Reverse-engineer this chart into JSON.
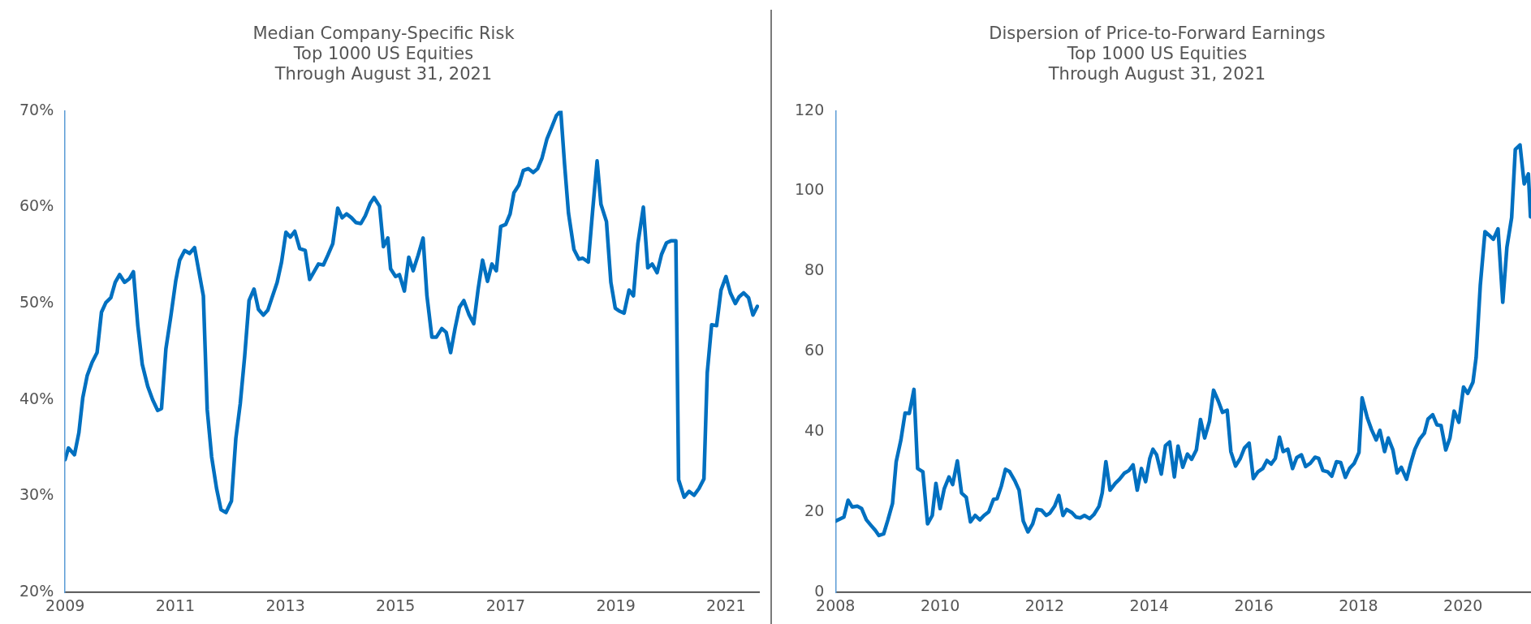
{
  "chart_data": [
    {
      "type": "line",
      "title": "Median Company-Specific Risk",
      "subtitle": "Top 1000 US Equities\nThrough August 31, 2021",
      "xlim": [
        2009,
        2021.6
      ],
      "xticks": [
        2009,
        2011,
        2013,
        2015,
        2017,
        2019,
        2021
      ],
      "ylim": [
        20,
        70
      ],
      "yticks": [
        {
          "value": 20,
          "label": "20%"
        },
        {
          "value": 30,
          "label": "30%"
        },
        {
          "value": 40,
          "label": "40%"
        },
        {
          "value": 50,
          "label": "50%"
        },
        {
          "value": 60,
          "label": "60%"
        },
        {
          "value": 70,
          "label": "70%"
        }
      ],
      "series": [
        {
          "color": "#0070c0",
          "x": [
            2009.0,
            2009.06,
            2009.17,
            2009.25,
            2009.32,
            2009.4,
            2009.49,
            2009.58,
            2009.66,
            2009.74,
            2009.83,
            2009.91,
            2009.99,
            2010.08,
            2010.17,
            2010.24,
            2010.32,
            2010.4,
            2010.5,
            2010.59,
            2010.68,
            2010.75,
            2010.83,
            2010.92,
            2011.01,
            2011.08,
            2011.17,
            2011.26,
            2011.35,
            2011.43,
            2011.51,
            2011.58,
            2011.66,
            2011.75,
            2011.83,
            2011.92,
            2012.02,
            2012.1,
            2012.18,
            2012.26,
            2012.34,
            2012.43,
            2012.51,
            2012.6,
            2012.68,
            2012.75,
            2012.85,
            2012.93,
            2013.01,
            2013.09,
            2013.17,
            2013.26,
            2013.36,
            2013.44,
            2013.52,
            2013.6,
            2013.69,
            2013.77,
            2013.86,
            2013.95,
            2014.03,
            2014.11,
            2014.2,
            2014.28,
            2014.37,
            2014.45,
            2014.54,
            2014.61,
            2014.71,
            2014.78,
            2014.86,
            2014.91,
            2015.0,
            2015.07,
            2015.16,
            2015.24,
            2015.32,
            2015.41,
            2015.5,
            2015.57,
            2015.66,
            2015.74,
            2015.84,
            2015.92,
            2016.0,
            2016.08,
            2016.16,
            2016.24,
            2016.33,
            2016.42,
            2016.5,
            2016.58,
            2016.67,
            2016.75,
            2016.83,
            2016.91,
            2017.0,
            2017.08,
            2017.15,
            2017.24,
            2017.32,
            2017.41,
            2017.5,
            2017.58,
            2017.66,
            2017.75,
            2017.83,
            2017.92,
            2018.0,
            2018.07,
            2018.14,
            2018.24,
            2018.33,
            2018.4,
            2018.5,
            2018.58,
            2018.66,
            2018.73,
            2018.83,
            2018.91,
            2018.99,
            2019.07,
            2019.15,
            2019.24,
            2019.32,
            2019.4,
            2019.5,
            2019.58,
            2019.66,
            2019.75,
            2019.83,
            2019.92,
            2020.0,
            2020.09,
            2020.14,
            2020.24,
            2020.33,
            2020.42,
            2020.51,
            2020.6,
            2020.66,
            2020.74,
            2020.83,
            2020.91,
            2021.0,
            2021.08,
            2021.17,
            2021.24,
            2021.32,
            2021.41,
            2021.49,
            2021.57
          ],
          "values": [
            33.8,
            35.0,
            34.3,
            36.6,
            40.2,
            42.5,
            43.9,
            44.9,
            49.1,
            50.1,
            50.6,
            52.2,
            53.0,
            52.2,
            52.6,
            53.3,
            47.7,
            43.7,
            41.4,
            40.0,
            38.9,
            39.1,
            45.3,
            48.7,
            52.4,
            54.5,
            55.5,
            55.2,
            55.8,
            53.3,
            50.8,
            39.0,
            34.1,
            30.8,
            28.6,
            28.3,
            29.5,
            36.0,
            39.6,
            44.5,
            50.3,
            51.5,
            49.4,
            48.8,
            49.3,
            50.5,
            52.2,
            54.3,
            57.4,
            56.9,
            57.5,
            55.7,
            55.5,
            52.5,
            53.3,
            54.1,
            54.0,
            55.0,
            56.2,
            59.9,
            58.9,
            59.3,
            58.9,
            58.4,
            58.3,
            59.1,
            60.4,
            61.0,
            60.1,
            55.9,
            56.8,
            53.6,
            52.8,
            53.0,
            51.3,
            54.8,
            53.4,
            55.0,
            56.8,
            50.8,
            46.5,
            46.5,
            47.4,
            47.0,
            44.9,
            47.4,
            49.6,
            50.3,
            48.9,
            47.9,
            51.5,
            54.5,
            52.3,
            54.1,
            53.4,
            58.0,
            58.2,
            59.3,
            61.5,
            62.3,
            63.8,
            64.0,
            63.6,
            64.0,
            65.1,
            67.1,
            68.2,
            69.5,
            70.0,
            64.4,
            59.4,
            55.6,
            54.6,
            54.7,
            54.3,
            59.7,
            64.8,
            60.3,
            58.5,
            52.2,
            49.5,
            49.2,
            49.0,
            51.4,
            50.8,
            56.2,
            60.0,
            53.7,
            54.1,
            53.2,
            55.1,
            56.3,
            56.5,
            56.5,
            31.7,
            29.9,
            30.5,
            30.1,
            30.8,
            31.8,
            42.8,
            47.8,
            47.7,
            51.4,
            52.8,
            51.1,
            50.0,
            50.7,
            51.1,
            50.6,
            48.8,
            49.7
          ]
        }
      ]
    },
    {
      "type": "line",
      "title": "Dispersion of Price-to-Forward Earnings",
      "subtitle": "Top 1000 US Equities\nThrough August 31, 2021",
      "xlim": [
        2008,
        2021.3
      ],
      "xticks": [
        2008,
        2010,
        2012,
        2014,
        2016,
        2018,
        2020
      ],
      "ylim": [
        0,
        120
      ],
      "yticks": [
        0,
        20,
        40,
        60,
        80,
        100,
        120
      ],
      "series": [
        {
          "color": "#0070c0",
          "x": [
            2008.0,
            2008.16,
            2008.24,
            2008.32,
            2008.42,
            2008.5,
            2008.59,
            2008.68,
            2008.76,
            2008.83,
            2008.92,
            2009.0,
            2009.09,
            2009.16,
            2009.25,
            2009.33,
            2009.41,
            2009.5,
            2009.57,
            2009.67,
            2009.76,
            2009.85,
            2009.92,
            2010.0,
            2010.08,
            2010.17,
            2010.24,
            2010.33,
            2010.41,
            2010.5,
            2010.58,
            2010.67,
            2010.76,
            2010.84,
            2010.93,
            2011.02,
            2011.09,
            2011.17,
            2011.25,
            2011.33,
            2011.43,
            2011.51,
            2011.59,
            2011.68,
            2011.77,
            2011.85,
            2011.94,
            2012.03,
            2012.1,
            2012.19,
            2012.27,
            2012.35,
            2012.42,
            2012.52,
            2012.6,
            2012.68,
            2012.76,
            2012.86,
            2012.94,
            2013.04,
            2013.1,
            2013.17,
            2013.25,
            2013.35,
            2013.43,
            2013.52,
            2013.61,
            2013.69,
            2013.77,
            2013.85,
            2013.93,
            2014.01,
            2014.07,
            2014.14,
            2014.23,
            2014.31,
            2014.39,
            2014.48,
            2014.55,
            2014.64,
            2014.73,
            2014.81,
            2014.9,
            2014.98,
            2015.06,
            2015.15,
            2015.23,
            2015.32,
            2015.4,
            2015.49,
            2015.56,
            2015.65,
            2015.74,
            2015.82,
            2015.91,
            2015.99,
            2016.08,
            2016.17,
            2016.25,
            2016.33,
            2016.41,
            2016.49,
            2016.56,
            2016.65,
            2016.74,
            2016.82,
            2016.91,
            2016.99,
            2017.08,
            2017.17,
            2017.24,
            2017.32,
            2017.41,
            2017.49,
            2017.58,
            2017.66,
            2017.75,
            2017.83,
            2017.92,
            2018.01,
            2018.07,
            2018.17,
            2018.25,
            2018.34,
            2018.41,
            2018.5,
            2018.57,
            2018.66,
            2018.74,
            2018.82,
            2018.92,
            2019.0,
            2019.08,
            2019.17,
            2019.26,
            2019.33,
            2019.42,
            2019.5,
            2019.58,
            2019.67,
            2019.75,
            2019.83,
            2019.92,
            2020.01,
            2020.09,
            2020.19,
            2020.25,
            2020.33,
            2020.42,
            2020.5,
            2020.58,
            2020.67,
            2020.76,
            2020.84,
            2020.93,
            2021.0,
            2021.09,
            2021.17,
            2021.25,
            2021.29
          ],
          "values": [
            17.8,
            18.8,
            23.0,
            21.3,
            21.5,
            20.9,
            18.1,
            16.7,
            15.5,
            14.2,
            14.6,
            18.0,
            22.2,
            32.6,
            38.0,
            44.7,
            44.6,
            50.6,
            30.9,
            30.1,
            17.1,
            19.2,
            27.2,
            20.9,
            25.9,
            28.8,
            26.9,
            32.8,
            24.8,
            23.7,
            17.6,
            19.2,
            18.1,
            19.2,
            20.1,
            23.2,
            23.4,
            26.5,
            30.7,
            30.1,
            27.8,
            25.5,
            17.8,
            15.1,
            17.1,
            20.7,
            20.5,
            19.2,
            19.8,
            21.5,
            24.2,
            19.2,
            20.7,
            19.9,
            18.8,
            18.6,
            19.2,
            18.4,
            19.4,
            21.5,
            24.8,
            32.6,
            25.5,
            27.2,
            28.2,
            29.7,
            30.4,
            31.8,
            25.5,
            30.9,
            27.6,
            33.4,
            35.7,
            34.3,
            29.5,
            36.6,
            37.5,
            28.8,
            36.5,
            31.2,
            34.5,
            33.2,
            35.5,
            43.1,
            38.5,
            42.6,
            50.4,
            47.7,
            44.9,
            45.4,
            35.1,
            31.5,
            33.4,
            36.0,
            37.2,
            28.4,
            30.1,
            30.9,
            32.9,
            32.0,
            33.4,
            38.7,
            35.1,
            35.7,
            30.9,
            33.6,
            34.3,
            31.4,
            32.2,
            33.7,
            33.4,
            30.4,
            30.1,
            29.0,
            32.6,
            32.4,
            28.7,
            30.9,
            32.2,
            34.9,
            48.5,
            43.5,
            40.6,
            38.0,
            40.4,
            35.1,
            38.5,
            35.5,
            29.8,
            31.2,
            28.2,
            32.2,
            35.7,
            38.2,
            39.7,
            43.2,
            44.3,
            41.8,
            41.6,
            35.5,
            38.5,
            45.2,
            42.4,
            51.2,
            49.6,
            52.4,
            58.5,
            76.5,
            89.9,
            89.0,
            88.0,
            90.6,
            72.3,
            86.1,
            93.4,
            110.4,
            111.5,
            101.8,
            104.3,
            93.6
          ]
        }
      ]
    }
  ]
}
